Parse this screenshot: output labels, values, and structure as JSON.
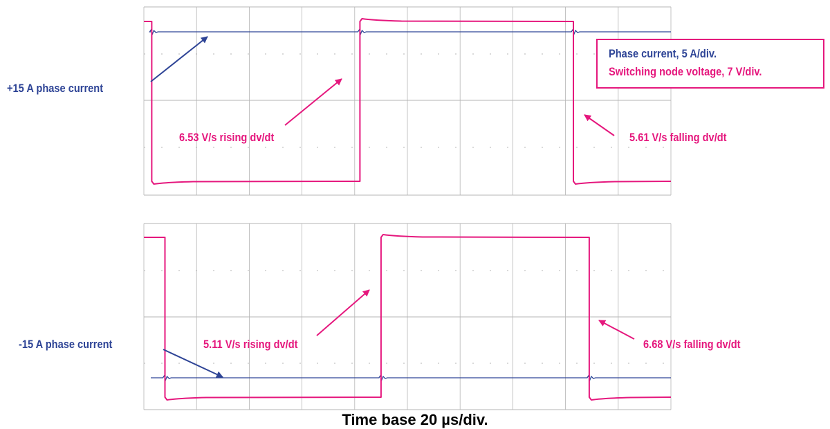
{
  "colors": {
    "phase_current": "#2e4496",
    "switching_voltage": "#e5177d",
    "grid": "#b4b4b4"
  },
  "legend": {
    "line1": "Phase current, 5 A/div.",
    "line2": "Switching node voltage, 7 V/div."
  },
  "time_base": "Time base 20 µs/div.",
  "chart_data": [
    {
      "type": "line",
      "panel": "top",
      "x_units": "µs",
      "xlim": [
        0,
        200
      ],
      "grid": true,
      "series": [
        {
          "name": "Phase current",
          "color": "#2e4496",
          "x": [
            0,
            200
          ],
          "y": [
            15,
            15
          ]
        },
        {
          "name": "Switching node voltage",
          "color": "#e5177d",
          "x": [
            0,
            3,
            3,
            82,
            82,
            163,
            163,
            200
          ],
          "y": [
            1,
            1,
            0,
            0,
            1,
            1,
            0,
            0
          ]
        }
      ],
      "annotations": [
        {
          "text": "+15 A phase current",
          "color": "#2e4496"
        },
        {
          "text": "6.53 V/s rising dv/dt",
          "color": "#e5177d"
        },
        {
          "text": "5.61 V/s falling dv/dt",
          "color": "#e5177d"
        }
      ]
    },
    {
      "type": "line",
      "panel": "bottom",
      "x_units": "µs",
      "xlim": [
        0,
        200
      ],
      "grid": true,
      "series": [
        {
          "name": "Phase current",
          "color": "#2e4496",
          "x": [
            0,
            200
          ],
          "y": [
            -15,
            -15
          ]
        },
        {
          "name": "Switching node voltage",
          "color": "#e5177d",
          "x": [
            0,
            8,
            8,
            90,
            90,
            169,
            169,
            200
          ],
          "y": [
            1,
            1,
            0,
            0,
            1,
            1,
            0,
            0
          ]
        }
      ],
      "annotations": [
        {
          "text": "-15 A phase current",
          "color": "#2e4496"
        },
        {
          "text": "5.11 V/s rising dv/dt",
          "color": "#e5177d"
        },
        {
          "text": "6.68 V/s falling dv/dt",
          "color": "#e5177d"
        }
      ]
    }
  ]
}
